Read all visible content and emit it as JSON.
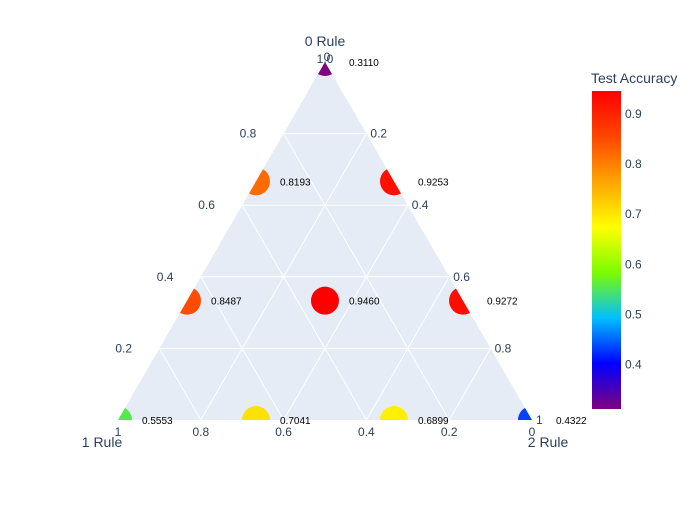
{
  "chart_data": {
    "type": "ternary-scatter",
    "axes": {
      "a": {
        "title": "0 Rule",
        "ticks": [
          "0.2",
          "0.4",
          "0.6",
          "0.8",
          "1.0"
        ]
      },
      "b": {
        "title": "1 Rule",
        "ticks": [
          "0",
          "0.2",
          "0.4",
          "0.6",
          "0.8",
          "1"
        ]
      },
      "c": {
        "title": "2 Rule",
        "ticks": [
          "0",
          "0.2",
          "0.4",
          "0.6",
          "0.8",
          "1"
        ]
      }
    },
    "points": [
      {
        "a": 1.0,
        "b": 0.0,
        "c": 0.0,
        "value": 0.311,
        "label": "0.3110"
      },
      {
        "a": 0.0,
        "b": 1.0,
        "c": 0.0,
        "value": 0.5553,
        "label": "0.5553"
      },
      {
        "a": 0.0,
        "b": 0.0,
        "c": 1.0,
        "value": 0.4322,
        "label": "0.4322"
      },
      {
        "a": 0.6667,
        "b": 0.3333,
        "c": 0.0,
        "value": 0.8193,
        "label": "0.8193"
      },
      {
        "a": 0.6667,
        "b": 0.0,
        "c": 0.3333,
        "value": 0.9253,
        "label": "0.9253"
      },
      {
        "a": 0.3333,
        "b": 0.6667,
        "c": 0.0,
        "value": 0.8487,
        "label": "0.8487"
      },
      {
        "a": 0.3333,
        "b": 0.0,
        "c": 0.6667,
        "value": 0.9272,
        "label": "0.9272"
      },
      {
        "a": 0.3333,
        "b": 0.3333,
        "c": 0.3333,
        "value": 0.946,
        "label": "0.9460"
      },
      {
        "a": 0.0,
        "b": 0.6667,
        "c": 0.3333,
        "value": 0.7041,
        "label": "0.7041"
      },
      {
        "a": 0.0,
        "b": 0.3333,
        "c": 0.6667,
        "value": 0.6899,
        "label": "0.6899"
      }
    ],
    "colorbar": {
      "title": "Test Accuracy",
      "range": [
        0.311,
        0.946
      ],
      "ticks": [
        "0.4",
        "0.5",
        "0.6",
        "0.7",
        "0.8",
        "0.9"
      ],
      "tick_values": [
        0.4,
        0.5,
        0.6,
        0.7,
        0.8,
        0.9
      ],
      "colorscale": [
        "#800080",
        "#0000ff",
        "#00bfff",
        "#7cfc00",
        "#ffff00",
        "#ffa500",
        "#ff4500",
        "#ff0000"
      ]
    },
    "colors": {
      "plot_background": "#e5ecf6",
      "grid": "#ffffff",
      "text": "#2a3f5f"
    }
  }
}
